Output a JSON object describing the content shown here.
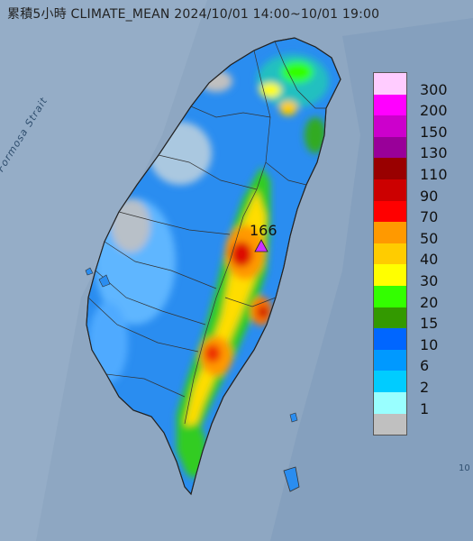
{
  "title": "累積5小時 CLIMATE_MEAN 2024/10/01 14:00~10/01 19:00",
  "sea_label": "Formosa Strait",
  "max_value_label": "166",
  "corner_label": "10",
  "legend": {
    "colors": [
      "#ffccff",
      "#ff00ff",
      "#cc00cc",
      "#990099",
      "#990000",
      "#cc0000",
      "#ff0000",
      "#ff9900",
      "#ffcc00",
      "#ffff00",
      "#33ff00",
      "#339900",
      "#0066ff",
      "#0099ff",
      "#00ccff",
      "#99ffff",
      "#c0c0c0"
    ],
    "labels": [
      "300",
      "200",
      "150",
      "130",
      "110",
      "90",
      "70",
      "50",
      "40",
      "30",
      "20",
      "15",
      "10",
      "6",
      "2",
      "1"
    ]
  }
}
